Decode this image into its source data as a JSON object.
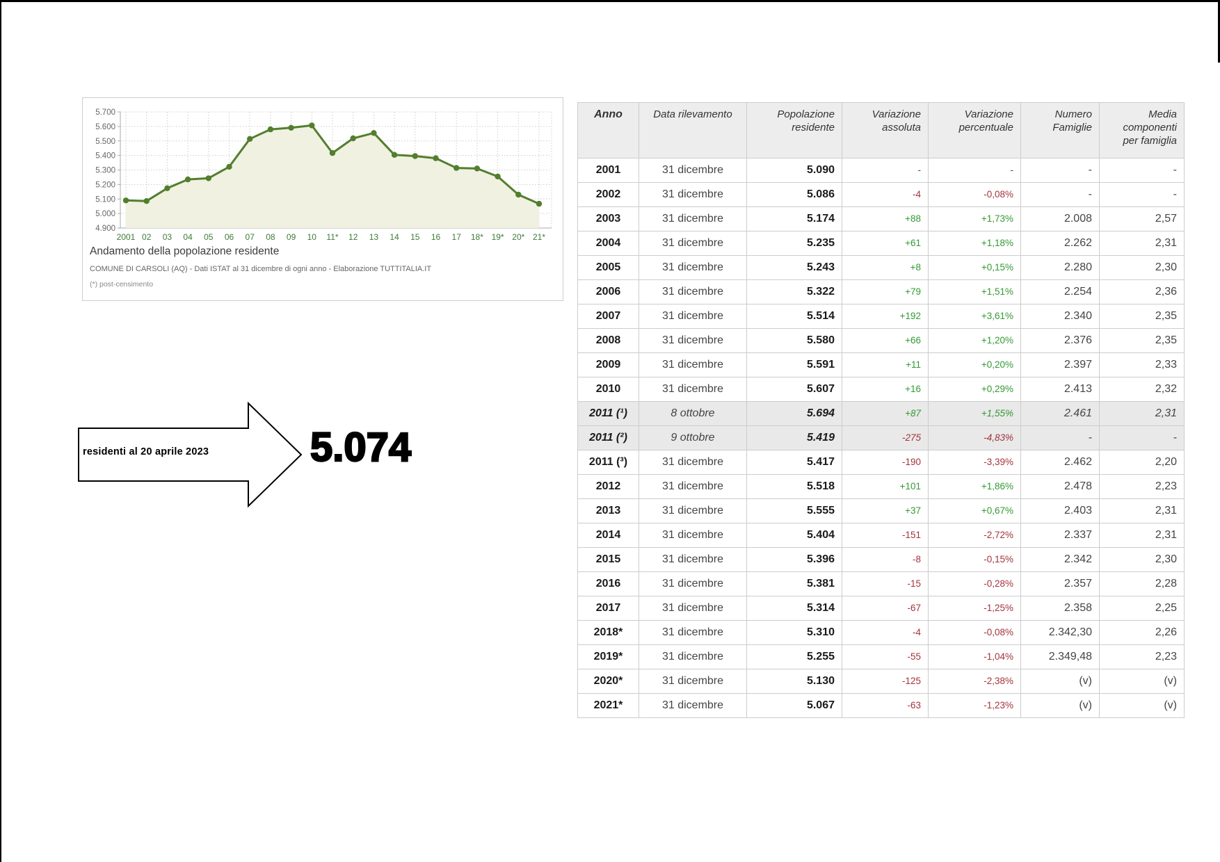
{
  "chart_data": {
    "type": "line",
    "title": "Andamento della popolazione residente",
    "subtitle": "COMUNE DI CARSOLI (AQ) - Dati ISTAT al 31 dicembre di ogni anno - Elaborazione TUTTITALIA.IT",
    "footnote": "(*) post-censimento",
    "x_labels": [
      "2001",
      "02",
      "03",
      "04",
      "05",
      "06",
      "07",
      "08",
      "09",
      "10",
      "11*",
      "12",
      "13",
      "14",
      "15",
      "16",
      "17",
      "18*",
      "19*",
      "20*",
      "21*"
    ],
    "values": [
      5090,
      5086,
      5174,
      5235,
      5243,
      5322,
      5514,
      5580,
      5591,
      5607,
      5417,
      5518,
      5555,
      5404,
      5396,
      5381,
      5314,
      5310,
      5255,
      5130,
      5067
    ],
    "ylim": [
      4900,
      5700
    ],
    "y_tick_step": 100,
    "y_tick_labels": [
      "5.700",
      "5.600",
      "5.500",
      "5.400",
      "5.300",
      "5.200",
      "5.100",
      "5.000",
      "4.900"
    ],
    "grid": true,
    "legend": "none",
    "colors": {
      "line": "#527e2e",
      "fill": "#f0f1e1",
      "x_labels": "#3d7a36",
      "y_labels": "#666666",
      "grid": "#cccccc",
      "axis": "#aaaaaa"
    }
  },
  "annotation": {
    "label": "residenti al 20 aprile 2023",
    "value": "5.074"
  },
  "table": {
    "headers": [
      {
        "label": "Anno",
        "align": "center",
        "bold": true
      },
      {
        "label": "Data rilevamento",
        "align": "center",
        "bold": false
      },
      {
        "label": "Popolazione residente",
        "align": "right",
        "bold": false
      },
      {
        "label": "Variazione assoluta",
        "align": "right",
        "bold": false
      },
      {
        "label": "Variazione percentuale",
        "align": "right",
        "bold": false
      },
      {
        "label": "Numero Famiglie",
        "align": "right",
        "bold": false
      },
      {
        "label": "Media componenti per famiglia",
        "align": "right",
        "bold": false
      }
    ],
    "colors": {
      "positive": "#339933",
      "negative": "#a2333c"
    },
    "rows": [
      {
        "anno": "2001",
        "data": "31 dicembre",
        "pop": "5.090",
        "var_abs": "-",
        "var_pct": "-",
        "fam": "-",
        "media": "-",
        "census": false
      },
      {
        "anno": "2002",
        "data": "31 dicembre",
        "pop": "5.086",
        "var_abs": "-4",
        "var_pct": "-0,08%",
        "fam": "-",
        "media": "-",
        "census": false
      },
      {
        "anno": "2003",
        "data": "31 dicembre",
        "pop": "5.174",
        "var_abs": "+88",
        "var_pct": "+1,73%",
        "fam": "2.008",
        "media": "2,57",
        "census": false
      },
      {
        "anno": "2004",
        "data": "31 dicembre",
        "pop": "5.235",
        "var_abs": "+61",
        "var_pct": "+1,18%",
        "fam": "2.262",
        "media": "2,31",
        "census": false
      },
      {
        "anno": "2005",
        "data": "31 dicembre",
        "pop": "5.243",
        "var_abs": "+8",
        "var_pct": "+0,15%",
        "fam": "2.280",
        "media": "2,30",
        "census": false
      },
      {
        "anno": "2006",
        "data": "31 dicembre",
        "pop": "5.322",
        "var_abs": "+79",
        "var_pct": "+1,51%",
        "fam": "2.254",
        "media": "2,36",
        "census": false
      },
      {
        "anno": "2007",
        "data": "31 dicembre",
        "pop": "5.514",
        "var_abs": "+192",
        "var_pct": "+3,61%",
        "fam": "2.340",
        "media": "2,35",
        "census": false
      },
      {
        "anno": "2008",
        "data": "31 dicembre",
        "pop": "5.580",
        "var_abs": "+66",
        "var_pct": "+1,20%",
        "fam": "2.376",
        "media": "2,35",
        "census": false
      },
      {
        "anno": "2009",
        "data": "31 dicembre",
        "pop": "5.591",
        "var_abs": "+11",
        "var_pct": "+0,20%",
        "fam": "2.397",
        "media": "2,33",
        "census": false
      },
      {
        "anno": "2010",
        "data": "31 dicembre",
        "pop": "5.607",
        "var_abs": "+16",
        "var_pct": "+0,29%",
        "fam": "2.413",
        "media": "2,32",
        "census": false
      },
      {
        "anno": "2011 (¹)",
        "data": "8 ottobre",
        "pop": "5.694",
        "var_abs": "+87",
        "var_pct": "+1,55%",
        "fam": "2.461",
        "media": "2,31",
        "census": true
      },
      {
        "anno": "2011 (²)",
        "data": "9 ottobre",
        "pop": "5.419",
        "var_abs": "-275",
        "var_pct": "-4,83%",
        "fam": "-",
        "media": "-",
        "census": true
      },
      {
        "anno": "2011 (³)",
        "data": "31 dicembre",
        "pop": "5.417",
        "var_abs": "-190",
        "var_pct": "-3,39%",
        "fam": "2.462",
        "media": "2,20",
        "census": false
      },
      {
        "anno": "2012",
        "data": "31 dicembre",
        "pop": "5.518",
        "var_abs": "+101",
        "var_pct": "+1,86%",
        "fam": "2.478",
        "media": "2,23",
        "census": false
      },
      {
        "anno": "2013",
        "data": "31 dicembre",
        "pop": "5.555",
        "var_abs": "+37",
        "var_pct": "+0,67%",
        "fam": "2.403",
        "media": "2,31",
        "census": false
      },
      {
        "anno": "2014",
        "data": "31 dicembre",
        "pop": "5.404",
        "var_abs": "-151",
        "var_pct": "-2,72%",
        "fam": "2.337",
        "media": "2,31",
        "census": false
      },
      {
        "anno": "2015",
        "data": "31 dicembre",
        "pop": "5.396",
        "var_abs": "-8",
        "var_pct": "-0,15%",
        "fam": "2.342",
        "media": "2,30",
        "census": false
      },
      {
        "anno": "2016",
        "data": "31 dicembre",
        "pop": "5.381",
        "var_abs": "-15",
        "var_pct": "-0,28%",
        "fam": "2.357",
        "media": "2,28",
        "census": false
      },
      {
        "anno": "2017",
        "data": "31 dicembre",
        "pop": "5.314",
        "var_abs": "-67",
        "var_pct": "-1,25%",
        "fam": "2.358",
        "media": "2,25",
        "census": false
      },
      {
        "anno": "2018*",
        "data": "31 dicembre",
        "pop": "5.310",
        "var_abs": "-4",
        "var_pct": "-0,08%",
        "fam": "2.342,30",
        "media": "2,26",
        "census": false
      },
      {
        "anno": "2019*",
        "data": "31 dicembre",
        "pop": "5.255",
        "var_abs": "-55",
        "var_pct": "-1,04%",
        "fam": "2.349,48",
        "media": "2,23",
        "census": false
      },
      {
        "anno": "2020*",
        "data": "31 dicembre",
        "pop": "5.130",
        "var_abs": "-125",
        "var_pct": "-2,38%",
        "fam": "(v)",
        "media": "(v)",
        "census": false
      },
      {
        "anno": "2021*",
        "data": "31 dicembre",
        "pop": "5.067",
        "var_abs": "-63",
        "var_pct": "-1,23%",
        "fam": "(v)",
        "media": "(v)",
        "census": false
      }
    ]
  }
}
